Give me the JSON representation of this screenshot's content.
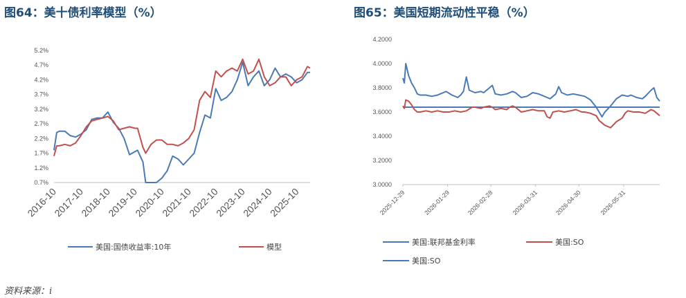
{
  "titles": {
    "left": "图64：美十债利率模型（%）",
    "right": "图65：美国短期流动性平稳（%）"
  },
  "source": "资料来源：i",
  "colors": {
    "blue": "#4a7ab5",
    "red": "#c0504d"
  },
  "chart_data": [
    {
      "type": "line",
      "title": "图64：美十债利率模型（%）",
      "yticks": [
        "0.7%",
        "1.2%",
        "1.7%",
        "2.2%",
        "2.7%",
        "3.2%",
        "3.7%",
        "4.2%",
        "4.7%",
        "5.2%"
      ],
      "ylim": [
        0.7,
        5.2
      ],
      "xticks": [
        "2016-10",
        "2017-10",
        "2018-10",
        "2019-10",
        "2020-10",
        "2021-10",
        "2022-10",
        "2023-10",
        "2024-10",
        "2025-10"
      ],
      "xlim": [
        2016.8,
        2026.3
      ],
      "legend_position": "bottom",
      "series": [
        {
          "name": "美国:国债收益率:10年",
          "color": "#4a7ab5",
          "points": [
            [
              2016.8,
              1.8
            ],
            [
              2016.9,
              2.4
            ],
            [
              2017.0,
              2.45
            ],
            [
              2017.2,
              2.45
            ],
            [
              2017.4,
              2.3
            ],
            [
              2017.6,
              2.25
            ],
            [
              2017.8,
              2.35
            ],
            [
              2018.0,
              2.5
            ],
            [
              2018.2,
              2.85
            ],
            [
              2018.4,
              2.9
            ],
            [
              2018.6,
              2.9
            ],
            [
              2018.8,
              3.1
            ],
            [
              2019.0,
              2.75
            ],
            [
              2019.2,
              2.55
            ],
            [
              2019.4,
              2.2
            ],
            [
              2019.6,
              1.65
            ],
            [
              2019.8,
              1.75
            ],
            [
              2019.9,
              1.8
            ],
            [
              2020.1,
              1.4
            ],
            [
              2020.2,
              0.7
            ],
            [
              2020.4,
              0.7
            ],
            [
              2020.6,
              0.7
            ],
            [
              2020.8,
              0.85
            ],
            [
              2021.0,
              1.1
            ],
            [
              2021.2,
              1.6
            ],
            [
              2021.4,
              1.5
            ],
            [
              2021.6,
              1.3
            ],
            [
              2021.8,
              1.5
            ],
            [
              2022.0,
              1.7
            ],
            [
              2022.2,
              2.4
            ],
            [
              2022.4,
              3.0
            ],
            [
              2022.6,
              2.9
            ],
            [
              2022.8,
              3.9
            ],
            [
              2023.0,
              3.5
            ],
            [
              2023.2,
              3.6
            ],
            [
              2023.4,
              3.8
            ],
            [
              2023.6,
              4.2
            ],
            [
              2023.8,
              4.8
            ],
            [
              2024.0,
              4.0
            ],
            [
              2024.2,
              4.3
            ],
            [
              2024.4,
              4.5
            ],
            [
              2024.6,
              4.0
            ],
            [
              2024.8,
              4.2
            ],
            [
              2025.0,
              4.6
            ],
            [
              2025.2,
              4.3
            ],
            [
              2025.4,
              4.4
            ],
            [
              2025.6,
              4.3
            ],
            [
              2025.8,
              4.1
            ],
            [
              2026.0,
              4.2
            ],
            [
              2026.2,
              4.45
            ],
            [
              2026.3,
              4.45
            ]
          ]
        },
        {
          "name": "模型",
          "color": "#c0504d",
          "points": [
            [
              2016.8,
              1.6
            ],
            [
              2016.9,
              1.95
            ],
            [
              2017.0,
              1.95
            ],
            [
              2017.2,
              2.0
            ],
            [
              2017.4,
              1.95
            ],
            [
              2017.6,
              2.05
            ],
            [
              2017.8,
              2.3
            ],
            [
              2018.0,
              2.6
            ],
            [
              2018.2,
              2.8
            ],
            [
              2018.4,
              2.85
            ],
            [
              2018.6,
              2.9
            ],
            [
              2018.8,
              2.95
            ],
            [
              2019.0,
              2.8
            ],
            [
              2019.2,
              2.5
            ],
            [
              2019.4,
              2.55
            ],
            [
              2019.6,
              2.6
            ],
            [
              2019.8,
              2.55
            ],
            [
              2019.9,
              2.55
            ],
            [
              2020.1,
              1.9
            ],
            [
              2020.2,
              1.7
            ],
            [
              2020.4,
              2.0
            ],
            [
              2020.6,
              2.15
            ],
            [
              2020.8,
              2.15
            ],
            [
              2021.0,
              2.0
            ],
            [
              2021.2,
              2.0
            ],
            [
              2021.4,
              1.95
            ],
            [
              2021.6,
              2.05
            ],
            [
              2021.8,
              2.2
            ],
            [
              2022.0,
              2.5
            ],
            [
              2022.2,
              3.5
            ],
            [
              2022.4,
              3.8
            ],
            [
              2022.6,
              3.6
            ],
            [
              2022.8,
              4.5
            ],
            [
              2023.0,
              4.3
            ],
            [
              2023.2,
              4.5
            ],
            [
              2023.4,
              4.6
            ],
            [
              2023.6,
              4.5
            ],
            [
              2023.8,
              4.9
            ],
            [
              2024.0,
              4.4
            ],
            [
              2024.2,
              4.5
            ],
            [
              2024.4,
              4.9
            ],
            [
              2024.6,
              4.3
            ],
            [
              2024.8,
              4.0
            ],
            [
              2025.0,
              4.1
            ],
            [
              2025.2,
              4.3
            ],
            [
              2025.4,
              4.3
            ],
            [
              2025.6,
              4.0
            ],
            [
              2025.8,
              4.2
            ],
            [
              2026.0,
              4.3
            ],
            [
              2026.2,
              4.65
            ],
            [
              2026.3,
              4.6
            ]
          ]
        }
      ],
      "legend": [
        "美国:国债收益率:10年",
        "模型"
      ]
    },
    {
      "type": "line",
      "title": "图65：美国短期流动性平稳（%）",
      "yticks": [
        "3.0000",
        "3.2000",
        "3.4000",
        "3.6000",
        "3.8000",
        "4.0000",
        "4.2000"
      ],
      "ylim": [
        3.0,
        4.2
      ],
      "xticks": [
        "2025-12-29",
        "2026-01-29",
        "2026-02-28",
        "2026-03-31",
        "2026-04-30",
        "2026-05-31"
      ],
      "xlim": [
        0,
        178
      ],
      "legend_position": "bottom",
      "series": [
        {
          "name": "美国:联邦基金利率",
          "color": "#4a7ab5",
          "points": [
            [
              0,
              3.64
            ],
            [
              178,
              3.64
            ]
          ]
        },
        {
          "name": "美国:SO",
          "color": "#c0504d",
          "points": [
            [
              0,
              3.65
            ],
            [
              1,
              3.63
            ],
            [
              2,
              3.7
            ],
            [
              4,
              3.69
            ],
            [
              6,
              3.66
            ],
            [
              8,
              3.62
            ],
            [
              10,
              3.6
            ],
            [
              12,
              3.6
            ],
            [
              16,
              3.61
            ],
            [
              20,
              3.6
            ],
            [
              24,
              3.61
            ],
            [
              28,
              3.6
            ],
            [
              32,
              3.6
            ],
            [
              36,
              3.61
            ],
            [
              40,
              3.6
            ],
            [
              44,
              3.61
            ],
            [
              48,
              3.64
            ],
            [
              50,
              3.64
            ],
            [
              54,
              3.63
            ],
            [
              56,
              3.64
            ],
            [
              60,
              3.65
            ],
            [
              62,
              3.64
            ],
            [
              64,
              3.62
            ],
            [
              68,
              3.63
            ],
            [
              72,
              3.62
            ],
            [
              74,
              3.64
            ],
            [
              76,
              3.65
            ],
            [
              78,
              3.64
            ],
            [
              82,
              3.6
            ],
            [
              86,
              3.61
            ],
            [
              90,
              3.62
            ],
            [
              94,
              3.61
            ],
            [
              98,
              3.61
            ],
            [
              100,
              3.56
            ],
            [
              102,
              3.55
            ],
            [
              104,
              3.6
            ],
            [
              108,
              3.61
            ],
            [
              112,
              3.6
            ],
            [
              116,
              3.61
            ],
            [
              120,
              3.62
            ],
            [
              124,
              3.6
            ],
            [
              126,
              3.6
            ],
            [
              130,
              3.59
            ],
            [
              134,
              3.57
            ],
            [
              136,
              3.53
            ],
            [
              140,
              3.49
            ],
            [
              142,
              3.48
            ],
            [
              144,
              3.47
            ],
            [
              148,
              3.52
            ],
            [
              152,
              3.55
            ],
            [
              154,
              3.59
            ],
            [
              156,
              3.61
            ],
            [
              160,
              3.6
            ],
            [
              164,
              3.6
            ],
            [
              168,
              3.59
            ],
            [
              172,
              3.62
            ],
            [
              174,
              3.61
            ],
            [
              178,
              3.57
            ]
          ]
        },
        {
          "name": "美国:SO",
          "color": "#4a7ab5",
          "points": [
            [
              0,
              3.88
            ],
            [
              1,
              3.84
            ],
            [
              2,
              4.0
            ],
            [
              4,
              3.9
            ],
            [
              6,
              3.84
            ],
            [
              8,
              3.8
            ],
            [
              10,
              3.75
            ],
            [
              12,
              3.74
            ],
            [
              16,
              3.74
            ],
            [
              20,
              3.73
            ],
            [
              24,
              3.74
            ],
            [
              28,
              3.76
            ],
            [
              30,
              3.77
            ],
            [
              34,
              3.74
            ],
            [
              38,
              3.72
            ],
            [
              40,
              3.74
            ],
            [
              42,
              3.77
            ],
            [
              44,
              3.89
            ],
            [
              46,
              3.78
            ],
            [
              50,
              3.76
            ],
            [
              54,
              3.77
            ],
            [
              56,
              3.76
            ],
            [
              60,
              3.8
            ],
            [
              62,
              3.82
            ],
            [
              64,
              3.75
            ],
            [
              68,
              3.74
            ],
            [
              72,
              3.75
            ],
            [
              76,
              3.77
            ],
            [
              78,
              3.76
            ],
            [
              82,
              3.72
            ],
            [
              86,
              3.73
            ],
            [
              90,
              3.76
            ],
            [
              94,
              3.75
            ],
            [
              98,
              3.73
            ],
            [
              100,
              3.72
            ],
            [
              102,
              3.71
            ],
            [
              106,
              3.75
            ],
            [
              108,
              3.81
            ],
            [
              110,
              3.76
            ],
            [
              114,
              3.74
            ],
            [
              118,
              3.75
            ],
            [
              122,
              3.74
            ],
            [
              126,
              3.73
            ],
            [
              130,
              3.7
            ],
            [
              134,
              3.64
            ],
            [
              136,
              3.6
            ],
            [
              138,
              3.56
            ],
            [
              140,
              3.6
            ],
            [
              144,
              3.65
            ],
            [
              148,
              3.71
            ],
            [
              152,
              3.74
            ],
            [
              156,
              3.73
            ],
            [
              158,
              3.74
            ],
            [
              162,
              3.72
            ],
            [
              166,
              3.71
            ],
            [
              168,
              3.73
            ],
            [
              172,
              3.78
            ],
            [
              174,
              3.8
            ],
            [
              176,
              3.72
            ],
            [
              178,
              3.69
            ]
          ]
        }
      ],
      "legend": [
        "美国:联邦基金利率",
        "美国:SO",
        "美国:SO"
      ]
    }
  ]
}
